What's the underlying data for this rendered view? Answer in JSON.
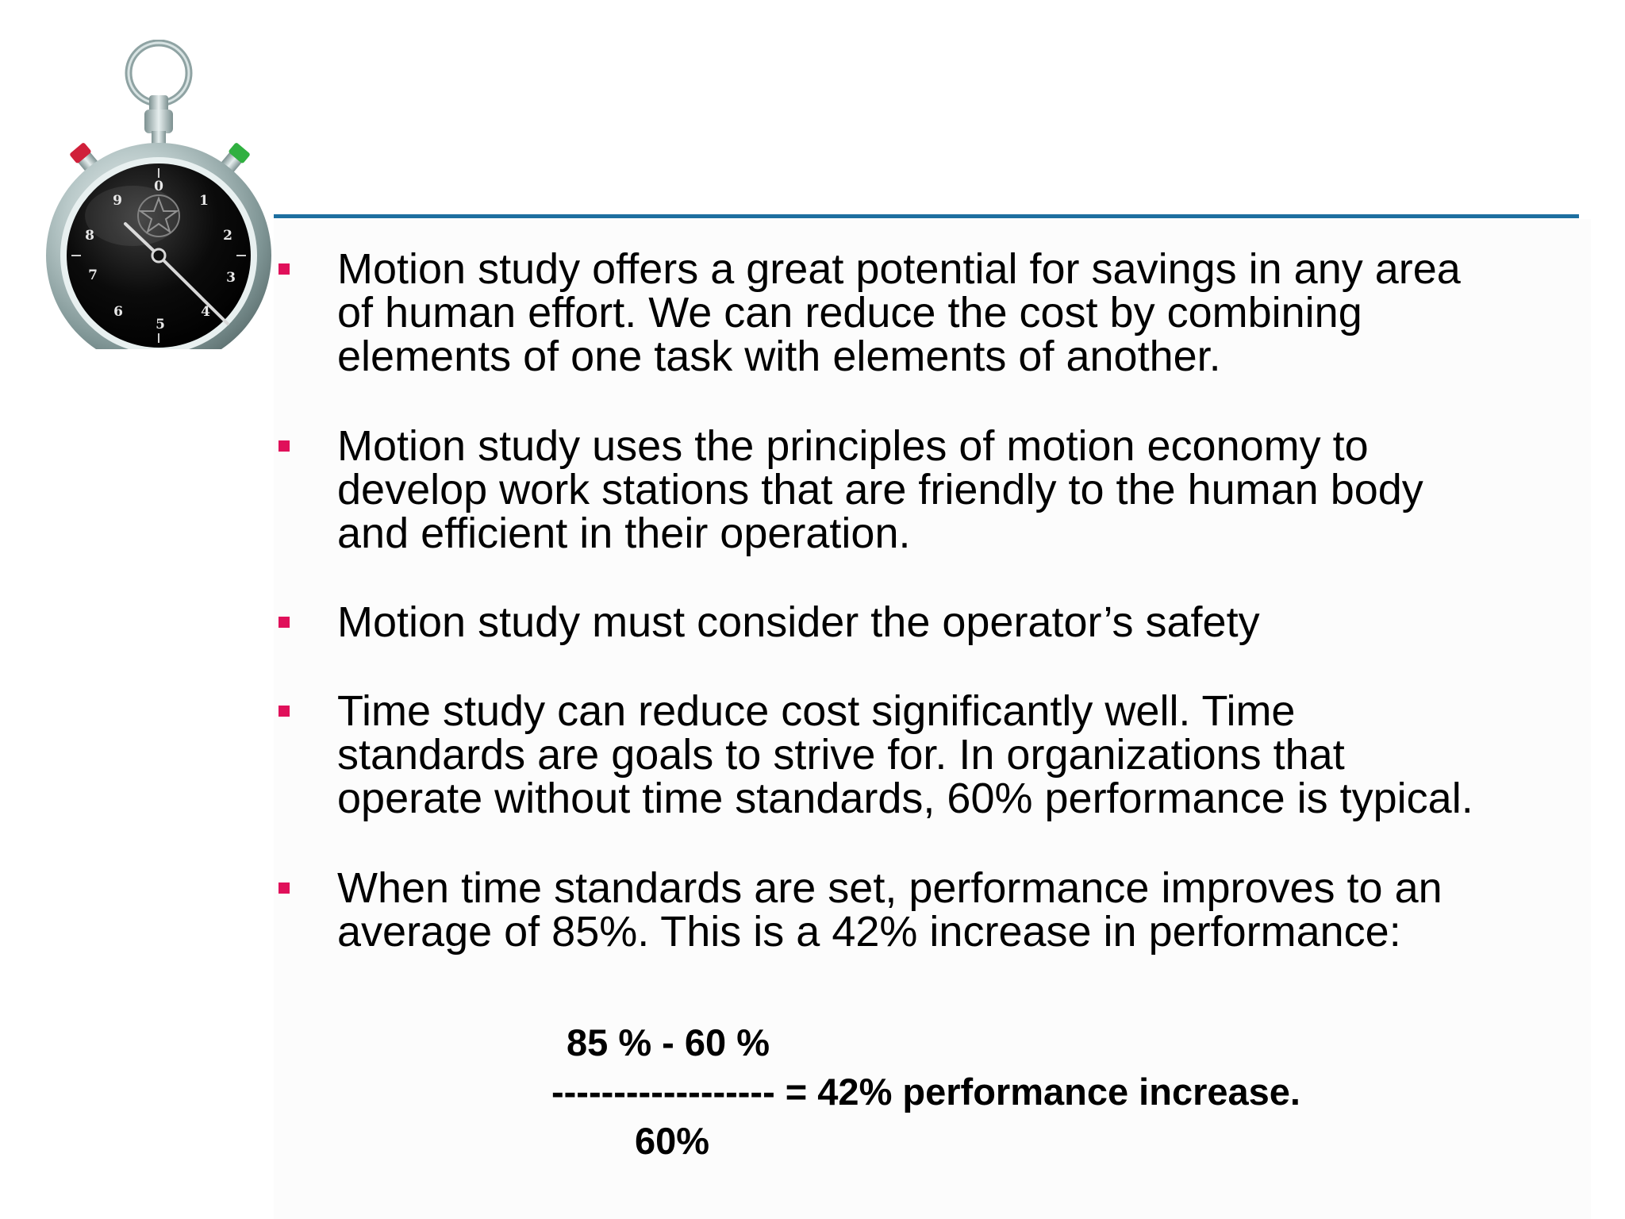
{
  "slide": {
    "accent_rule_color": "#1d6fa0",
    "bullet_marker_color": "#e0105a",
    "decoration": "stopwatch-icon",
    "bullets": [
      {
        "text": "Motion study offers a great potential for savings in any area\nof human  effort. We can reduce the cost by combining\nelements of one task with elements of another."
      },
      {
        "text": "Motion study uses the principles of motion economy to\ndevelop work stations that are friendly to the human body\nand efficient in their operation."
      },
      {
        "text": "Motion study must consider the operator’s safety"
      },
      {
        "text": "Time study can reduce cost significantly well. Time\nstandards are goals to strive for. In organizations that\noperate without time standards, 60% performance is typical."
      },
      {
        "text": "When time standards are set, performance improves to an\naverage of 85%. This is a 42% increase in performance:"
      }
    ],
    "formula": {
      "numerator": "85 % - 60 %",
      "fraction_line": "------------------ = 42% performance increase.",
      "denominator": "60%"
    }
  }
}
